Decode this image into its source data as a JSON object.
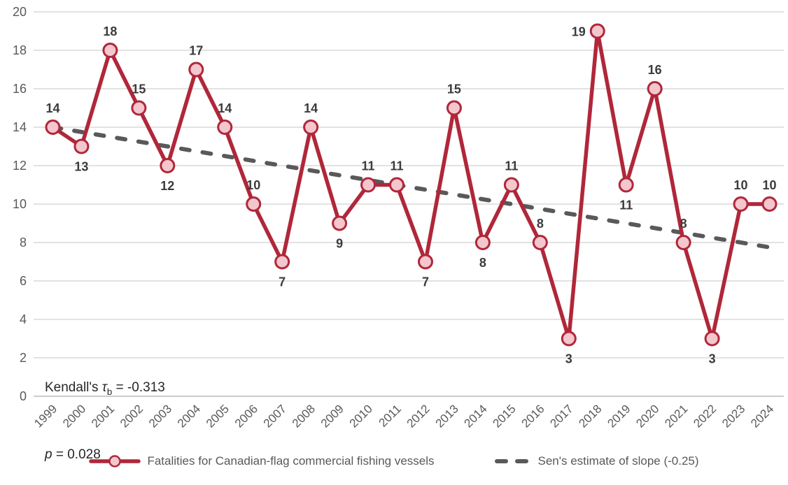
{
  "chart_data": {
    "type": "line",
    "x": [
      1999,
      2000,
      2001,
      2002,
      2003,
      2004,
      2005,
      2006,
      2007,
      2008,
      2009,
      2010,
      2011,
      2012,
      2013,
      2014,
      2015,
      2016,
      2017,
      2018,
      2019,
      2020,
      2021,
      2022,
      2023,
      2024
    ],
    "series": [
      {
        "name": "Fatalities for Canadian-flag commercial fishing vessels",
        "values": [
          14,
          13,
          18,
          15,
          12,
          17,
          14,
          10,
          7,
          14,
          9,
          11,
          11,
          7,
          15,
          8,
          11,
          8,
          3,
          19,
          11,
          16,
          8,
          3,
          10,
          10
        ],
        "color": "#b0273a",
        "marker_fill": "#f4c6cd",
        "style": "solid-with-markers"
      },
      {
        "name": "Sen's estimate of slope (-0.25)",
        "trend": true,
        "start_value": 14,
        "slope_per_year": -0.25,
        "color": "#595959",
        "style": "dashed"
      }
    ],
    "label_positions": [
      "above",
      "below",
      "above",
      "above",
      "below",
      "above",
      "above",
      "above",
      "below",
      "above",
      "below",
      "above",
      "above",
      "below",
      "above",
      "below",
      "above",
      "above",
      "below",
      "left",
      "below",
      "above",
      "above",
      "below",
      "above",
      "above"
    ],
    "ylim": [
      0,
      20
    ],
    "ytick_step": 2,
    "xlabel": "",
    "ylabel": "",
    "grid": "horizontal",
    "gridline_color": "#d9d9d9",
    "axis_label_color": "#595959",
    "data_label_color": "#3b3b3b",
    "legend_position": "bottom"
  },
  "annotation": {
    "prefix": "Kendall's ",
    "tau": "τ",
    "tau_sub": "b",
    "tau_value": " = -0.313",
    "p": "p",
    "p_value": " = 0.028"
  }
}
